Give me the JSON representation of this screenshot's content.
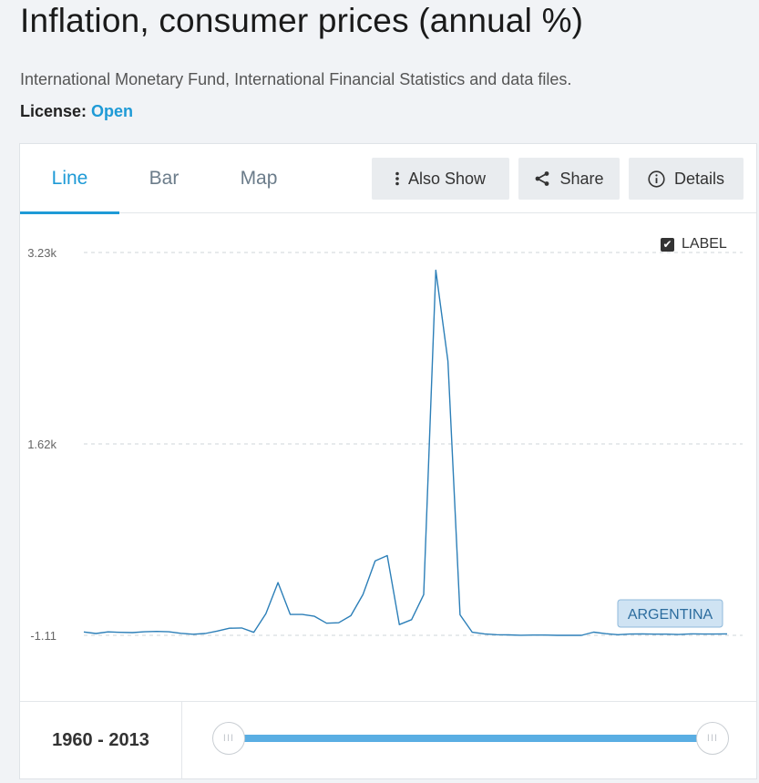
{
  "page": {
    "title": "Inflation, consumer prices (annual %)",
    "source": "International Monetary Fund, International Financial Statistics and data files.",
    "license_label": "License:",
    "license_value": "Open"
  },
  "tabs": [
    {
      "label": "Line",
      "active": true
    },
    {
      "label": "Bar",
      "active": false
    },
    {
      "label": "Map",
      "active": false
    }
  ],
  "toolbar": {
    "also_show": "Also Show",
    "share": "Share",
    "details": "Details"
  },
  "label_toggle": {
    "label": "LABEL",
    "checked": true
  },
  "range": {
    "label": "1960 - 2013",
    "start": 1960,
    "end": 2013,
    "handle_glyph": "III"
  },
  "colors": {
    "accent": "#1e9ad6",
    "line": "#2c7fb8",
    "badge_bg": "#cfe3f3",
    "slider": "#5aaee3"
  },
  "chart_data": {
    "type": "line",
    "title": "",
    "xlabel": "",
    "ylabel": "",
    "yticks": [
      "3.23k",
      "1.62k",
      "-1.11"
    ],
    "ylim": [
      -1.11,
      3230
    ],
    "grid": true,
    "series": [
      {
        "name": "ARGENTINA",
        "x": [
          1960,
          1961,
          1962,
          1963,
          1964,
          1965,
          1966,
          1967,
          1968,
          1969,
          1970,
          1971,
          1972,
          1973,
          1974,
          1975,
          1976,
          1977,
          1978,
          1979,
          1980,
          1981,
          1982,
          1983,
          1984,
          1985,
          1986,
          1987,
          1988,
          1989,
          1990,
          1991,
          1992,
          1993,
          1994,
          1995,
          1996,
          1997,
          1998,
          1999,
          2000,
          2001,
          2002,
          2003,
          2004,
          2005,
          2006,
          2007,
          2008,
          2009,
          2010,
          2011,
          2012,
          2013
        ],
        "y": [
          27,
          14,
          28,
          24,
          22,
          29,
          32,
          29,
          16,
          8,
          14,
          35,
          59,
          61,
          24,
          182,
          444,
          176,
          175,
          160,
          101,
          105,
          165,
          344,
          627,
          672,
          90,
          131,
          343,
          3080,
          2314,
          172,
          25,
          11,
          4,
          3,
          0,
          1,
          1,
          -1,
          -1,
          -1,
          26,
          13,
          4,
          10,
          11,
          9,
          9,
          6,
          11,
          10,
          10,
          11
        ]
      }
    ]
  }
}
